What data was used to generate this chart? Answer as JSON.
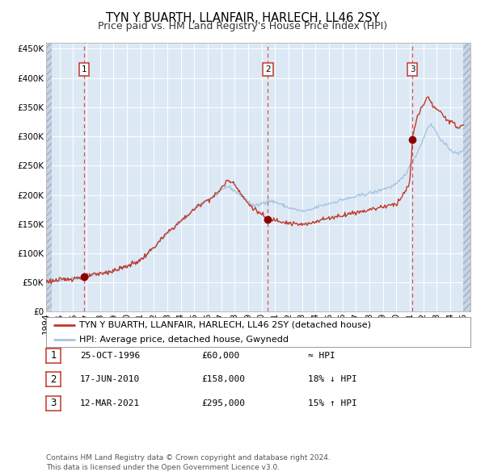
{
  "title": "TYN Y BUARTH, LLANFAIR, HARLECH, LL46 2SY",
  "subtitle": "Price paid vs. HM Land Registry's House Price Index (HPI)",
  "ylim": [
    0,
    460000
  ],
  "xlim_start": 1994.0,
  "xlim_end": 2025.5,
  "yticks": [
    0,
    50000,
    100000,
    150000,
    200000,
    250000,
    300000,
    350000,
    400000,
    450000
  ],
  "xtick_years": [
    1994,
    1995,
    1996,
    1997,
    1998,
    1999,
    2000,
    2001,
    2002,
    2003,
    2004,
    2005,
    2006,
    2007,
    2008,
    2009,
    2010,
    2011,
    2012,
    2013,
    2014,
    2015,
    2016,
    2017,
    2018,
    2019,
    2020,
    2021,
    2022,
    2023,
    2024,
    2025
  ],
  "hpi_color": "#a8c4e0",
  "price_color": "#c0392b",
  "vline_color": "#e05050",
  "dot_color": "#8b0000",
  "background_color": "#dce9f5",
  "hatch_region_color": "#c8d4e2",
  "sale_points": [
    {
      "year": 1996.82,
      "price": 60000,
      "label": "1"
    },
    {
      "year": 2010.46,
      "price": 158000,
      "label": "2"
    },
    {
      "year": 2021.19,
      "price": 295000,
      "label": "3"
    }
  ],
  "legend_line1": "TYN Y BUARTH, LLANFAIR, HARLECH, LL46 2SY (detached house)",
  "legend_line2": "HPI: Average price, detached house, Gwynedd",
  "table_rows": [
    {
      "num": "1",
      "date": "25-OCT-1996",
      "price": "£60,000",
      "rel": "≈ HPI"
    },
    {
      "num": "2",
      "date": "17-JUN-2010",
      "price": "£158,000",
      "rel": "18% ↓ HPI"
    },
    {
      "num": "3",
      "date": "12-MAR-2021",
      "price": "£295,000",
      "rel": "15% ↑ HPI"
    }
  ],
  "footer_line1": "Contains HM Land Registry data © Crown copyright and database right 2024.",
  "footer_line2": "This data is licensed under the Open Government Licence v3.0.",
  "title_fontsize": 10.5,
  "subtitle_fontsize": 9,
  "tick_fontsize": 7.5,
  "legend_fontsize": 8,
  "table_fontsize": 8,
  "footer_fontsize": 6.5
}
